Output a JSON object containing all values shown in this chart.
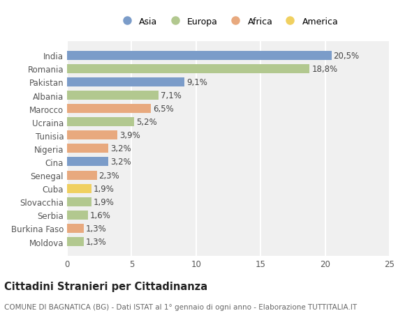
{
  "countries": [
    "India",
    "Romania",
    "Pakistan",
    "Albania",
    "Marocco",
    "Ucraina",
    "Tunisia",
    "Nigeria",
    "Cina",
    "Senegal",
    "Cuba",
    "Slovacchia",
    "Serbia",
    "Burkina Faso",
    "Moldova"
  ],
  "values": [
    20.5,
    18.8,
    9.1,
    7.1,
    6.5,
    5.2,
    3.9,
    3.2,
    3.2,
    2.3,
    1.9,
    1.9,
    1.6,
    1.3,
    1.3
  ],
  "labels": [
    "20,5%",
    "18,8%",
    "9,1%",
    "7,1%",
    "6,5%",
    "5,2%",
    "3,9%",
    "3,2%",
    "3,2%",
    "2,3%",
    "1,9%",
    "1,9%",
    "1,6%",
    "1,3%",
    "1,3%"
  ],
  "continents": [
    "Asia",
    "Europa",
    "Asia",
    "Europa",
    "Africa",
    "Europa",
    "Africa",
    "Africa",
    "Asia",
    "Africa",
    "America",
    "Europa",
    "Europa",
    "Africa",
    "Europa"
  ],
  "colors": {
    "Asia": "#7b9cc9",
    "Europa": "#b2c88f",
    "Africa": "#e8a97e",
    "America": "#f0d060"
  },
  "legend_order": [
    "Asia",
    "Europa",
    "Africa",
    "America"
  ],
  "title": "Cittadini Stranieri per Cittadinanza",
  "subtitle": "COMUNE DI BAGNATICA (BG) - Dati ISTAT al 1° gennaio di ogni anno - Elaborazione TUTTITALIA.IT",
  "xlim": [
    0,
    25
  ],
  "xticks": [
    0,
    5,
    10,
    15,
    20,
    25
  ],
  "background_color": "#ffffff",
  "plot_bg_color": "#f0f0f0",
  "grid_color": "#ffffff",
  "bar_height": 0.68,
  "label_fontsize": 8.5,
  "tick_fontsize": 8.5,
  "title_fontsize": 10.5,
  "subtitle_fontsize": 7.5
}
